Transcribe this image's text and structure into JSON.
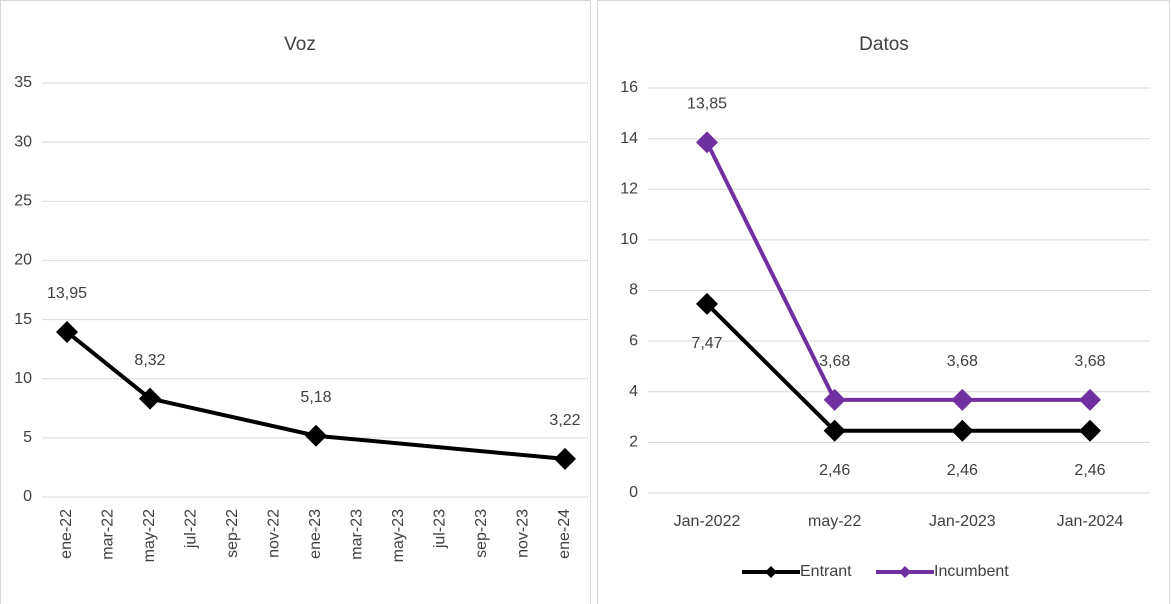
{
  "chart_data": [
    {
      "type": "line",
      "title": "Voz",
      "xticks": [
        "ene-22",
        "mar-22",
        "may-22",
        "jul-22",
        "sep-22",
        "nov-22",
        "ene-23",
        "mar-23",
        "may-23",
        "jul-23",
        "sep-23",
        "nov-23",
        "ene-24"
      ],
      "x": [
        "ene-22",
        "may-22",
        "ene-23",
        "ene-24"
      ],
      "series": [
        {
          "color": "#000000",
          "values": [
            13.95,
            8.32,
            5.18,
            3.22
          ],
          "value_labels": [
            "13,95",
            "8,32",
            "5,18",
            "3,22"
          ]
        }
      ],
      "ylim": [
        0,
        35
      ],
      "yticks": [
        0,
        5,
        10,
        15,
        20,
        25,
        30,
        35
      ],
      "grid": true
    },
    {
      "type": "line",
      "title": "Datos",
      "categories": [
        "Jan-2022",
        "may-22",
        "Jan-2023",
        "Jan-2024"
      ],
      "series": [
        {
          "name": "Entrant",
          "color": "#000000",
          "values": [
            7.47,
            2.46,
            2.46,
            2.46
          ],
          "value_labels": [
            "7,47",
            "2,46",
            "2,46",
            "2,46"
          ]
        },
        {
          "name": "Incumbent",
          "color": "#7030a0",
          "values": [
            13.85,
            3.68,
            3.68,
            3.68
          ],
          "value_labels": [
            "13,85",
            "3,68",
            "3,68",
            "3,68"
          ]
        }
      ],
      "ylim": [
        0,
        16
      ],
      "yticks": [
        0,
        2,
        4,
        6,
        8,
        10,
        12,
        14,
        16
      ],
      "grid": true,
      "legend": "bottom"
    }
  ]
}
